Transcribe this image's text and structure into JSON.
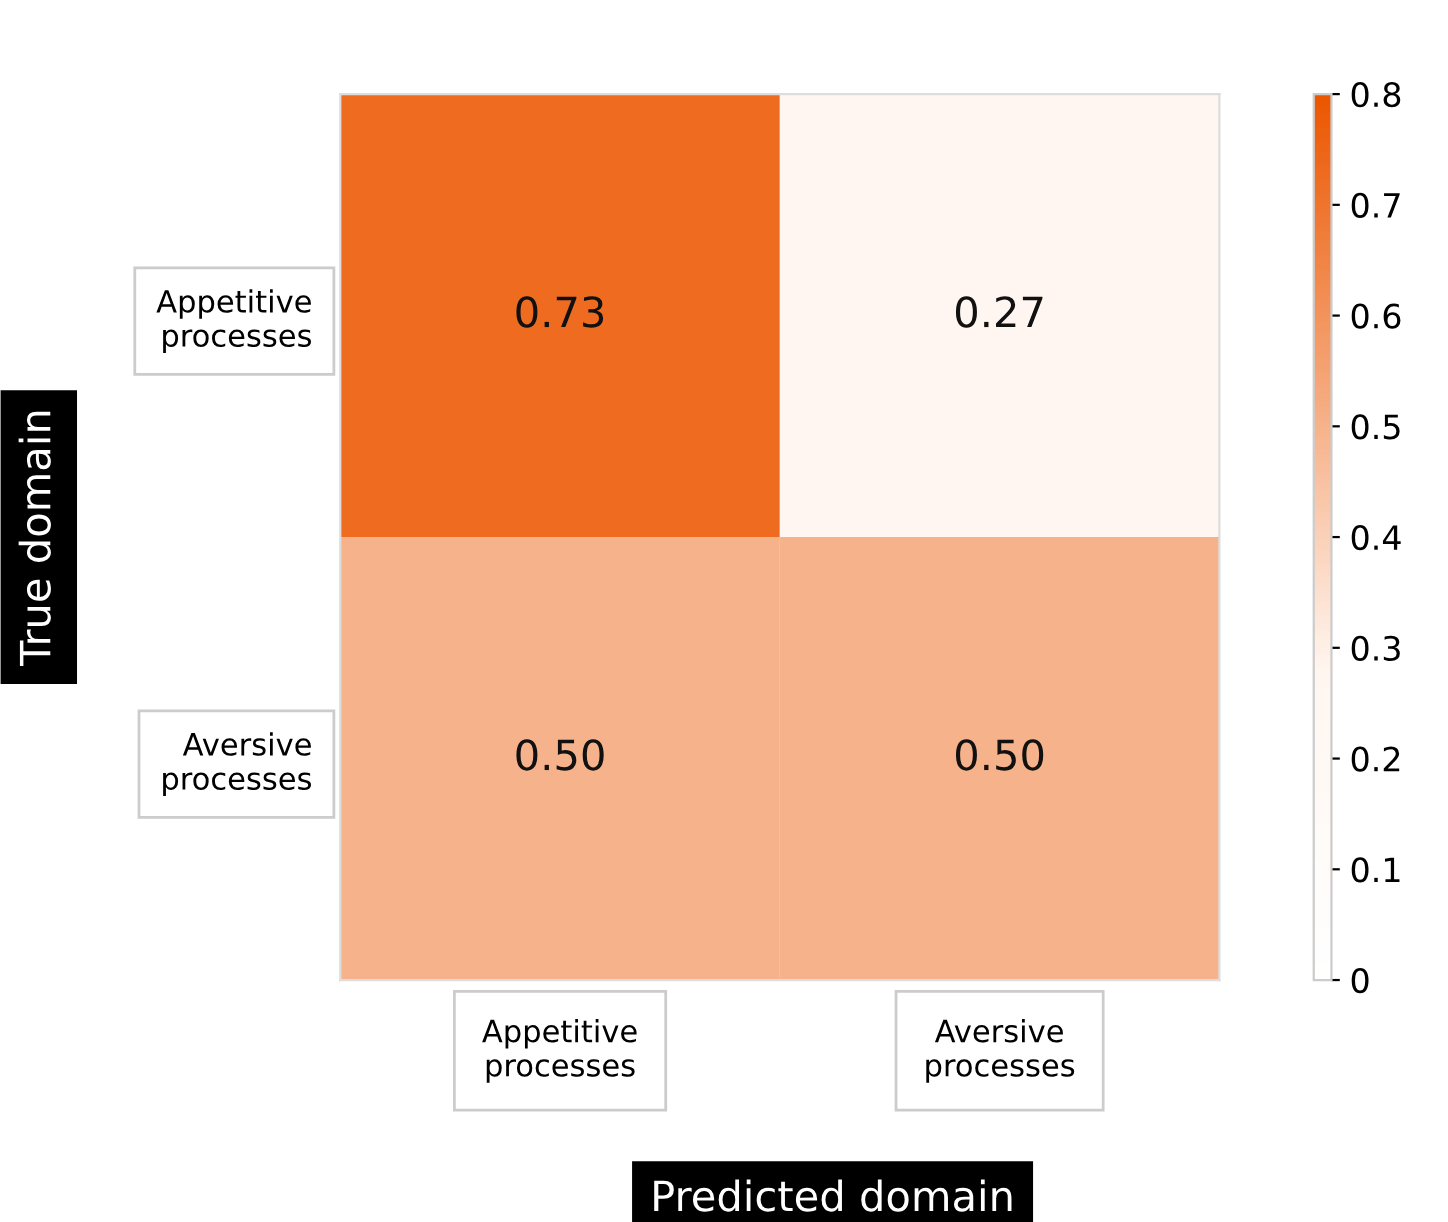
{
  "chart_data": {
    "type": "heatmap",
    "categories": [
      "Appetitive\nprocesses",
      "Aversive\nprocesses"
    ],
    "y_categories": [
      "Appetitive\nprocesses",
      "Aversive\nprocesses"
    ],
    "cells": [
      [
        0.73,
        0.27
      ],
      [
        0.5,
        0.5
      ]
    ],
    "cell_labels": [
      [
        "0.73",
        "0.27"
      ],
      [
        "0.50",
        "0.50"
      ]
    ],
    "xlabel": "Predicted domain",
    "ylabel": "True domain",
    "clim": [
      0,
      0.8
    ],
    "cticks": [
      0,
      0.1,
      0.2,
      0.3,
      0.4,
      0.5,
      0.6,
      0.7,
      0.8
    ]
  }
}
